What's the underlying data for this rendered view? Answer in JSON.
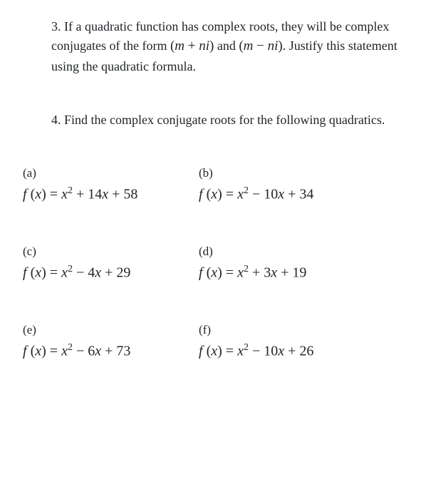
{
  "q3": {
    "number": "3.",
    "text_before_math1": "If a quadratic function has complex roots, they will be complex conjugates of the form",
    "math1": "(m + ni)",
    "text_between": "and",
    "math2": "(m − ni)",
    "text_after": ". Justify this statement using the quadratic formula."
  },
  "q4": {
    "number": "4.",
    "text": "Find the complex conjugate roots for the following quadratics."
  },
  "parts": {
    "a": {
      "label": "(a)",
      "formula_html": "f (x) = x<sup>2</sup> + 14x + 58"
    },
    "b": {
      "label": "(b)",
      "formula_html": "f (x) = x<sup>2</sup> − 10x + 34"
    },
    "c": {
      "label": "(c)",
      "formula_html": "f (x) = x<sup>2</sup> − 4x + 29"
    },
    "d": {
      "label": "(d)",
      "formula_html": "f (x) = x<sup>2</sup> + 3x + 19"
    },
    "e": {
      "label": "(e)",
      "formula_html": "f (x) = x<sup>2</sup> − 6x + 73"
    },
    "f": {
      "label": "(f)",
      "formula_html": "f (x) = x<sup>2</sup> − 10x + 26"
    }
  },
  "style": {
    "text_color": "#212529",
    "background": "#ffffff",
    "body_fontsize": 18,
    "formula_fontsize": 20
  }
}
